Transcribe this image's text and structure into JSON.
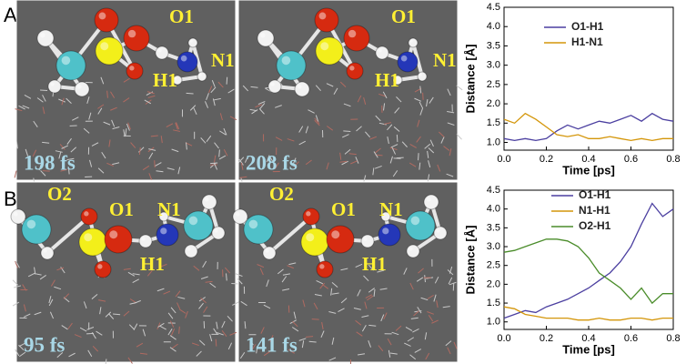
{
  "panels": [
    {
      "label": "A",
      "images": [
        {
          "time": "198 fs",
          "atoms": [
            "O1",
            "H1",
            "N1"
          ]
        },
        {
          "time": "208 fs",
          "atoms": [
            "O1",
            "H1",
            "N1"
          ]
        }
      ]
    },
    {
      "label": "B",
      "images": [
        {
          "time": "95 fs",
          "atoms": [
            "O2",
            "O1",
            "N1",
            "H1"
          ]
        },
        {
          "time": "141 fs",
          "atoms": [
            "O2",
            "O1",
            "N1",
            "H1"
          ]
        }
      ]
    }
  ],
  "chart_data": [
    {
      "type": "line",
      "x_label": "Time [ps]",
      "y_label": "Distance [Å]",
      "x": [
        0,
        0.05,
        0.1,
        0.15,
        0.2,
        0.25,
        0.3,
        0.35,
        0.4,
        0.45,
        0.5,
        0.55,
        0.6,
        0.65,
        0.7,
        0.75,
        0.8
      ],
      "series": [
        {
          "name": "O1-H1",
          "color": "#4b3fa0",
          "values": [
            1.1,
            1.05,
            1.1,
            1.05,
            1.1,
            1.3,
            1.45,
            1.35,
            1.45,
            1.55,
            1.5,
            1.6,
            1.7,
            1.55,
            1.75,
            1.6,
            1.55
          ]
        },
        {
          "name": "H1-N1",
          "color": "#d4960a",
          "values": [
            1.6,
            1.5,
            1.75,
            1.6,
            1.4,
            1.2,
            1.15,
            1.2,
            1.1,
            1.1,
            1.15,
            1.1,
            1.05,
            1.1,
            1.05,
            1.1,
            1.1
          ]
        }
      ],
      "xlim": [
        0,
        0.8
      ],
      "xticks": [
        {
          "value": 0,
          "label": "0.0"
        },
        {
          "value": 0.2,
          "label": "0.2"
        },
        {
          "value": 0.4,
          "label": "0.4"
        },
        {
          "value": 0.6,
          "label": "0.6"
        },
        {
          "value": 0.8,
          "label": "0.8"
        }
      ],
      "ylim": [
        0.8,
        4.5
      ],
      "yticks": [
        {
          "value": 1,
          "label": "1.0"
        },
        {
          "value": 1.5,
          "label": "1.5"
        },
        {
          "value": 2,
          "label": "2.0"
        },
        {
          "value": 2.5,
          "label": "2.5"
        },
        {
          "value": 3,
          "label": "3.0"
        },
        {
          "value": 3.5,
          "label": "3.5"
        },
        {
          "value": 4,
          "label": "4.0"
        },
        {
          "value": 4.5,
          "label": "4.5"
        }
      ]
    },
    {
      "type": "line",
      "x_label": "Time [ps]",
      "y_label": "Distance [Å]",
      "x": [
        0,
        0.05,
        0.1,
        0.15,
        0.2,
        0.25,
        0.3,
        0.35,
        0.4,
        0.45,
        0.5,
        0.55,
        0.6,
        0.65,
        0.7,
        0.75,
        0.8
      ],
      "series": [
        {
          "name": "O1-H1",
          "color": "#4b3fa0",
          "values": [
            1.1,
            1.2,
            1.3,
            1.25,
            1.4,
            1.5,
            1.6,
            1.75,
            1.9,
            2.1,
            2.3,
            2.6,
            3.0,
            3.6,
            4.15,
            3.8,
            4.0
          ]
        },
        {
          "name": "N1-H1",
          "color": "#d4960a",
          "values": [
            1.4,
            1.35,
            1.2,
            1.15,
            1.1,
            1.1,
            1.1,
            1.05,
            1.05,
            1.1,
            1.05,
            1.05,
            1.1,
            1.1,
            1.05,
            1.1,
            1.1
          ]
        },
        {
          "name": "O2-H1",
          "color": "#4a8c2a",
          "values": [
            2.85,
            2.9,
            3.0,
            3.1,
            3.2,
            3.2,
            3.15,
            3.0,
            2.7,
            2.3,
            2.1,
            1.9,
            1.6,
            1.9,
            1.5,
            1.75,
            1.75
          ]
        }
      ],
      "xlim": [
        0,
        0.8
      ],
      "xticks": [
        {
          "value": 0,
          "label": "0.0"
        },
        {
          "value": 0.2,
          "label": "0.2"
        },
        {
          "value": 0.4,
          "label": "0.4"
        },
        {
          "value": 0.6,
          "label": "0.6"
        },
        {
          "value": 0.8,
          "label": "0.8"
        }
      ],
      "ylim": [
        0.8,
        4.5
      ],
      "yticks": [
        {
          "value": 1,
          "label": "1.0"
        },
        {
          "value": 1.5,
          "label": "1.5"
        },
        {
          "value": 2,
          "label": "2.0"
        },
        {
          "value": 2.5,
          "label": "2.5"
        },
        {
          "value": 3,
          "label": "3.0"
        },
        {
          "value": 3.5,
          "label": "3.5"
        },
        {
          "value": 4,
          "label": "4.0"
        },
        {
          "value": 4.5,
          "label": "4.5"
        }
      ]
    }
  ]
}
